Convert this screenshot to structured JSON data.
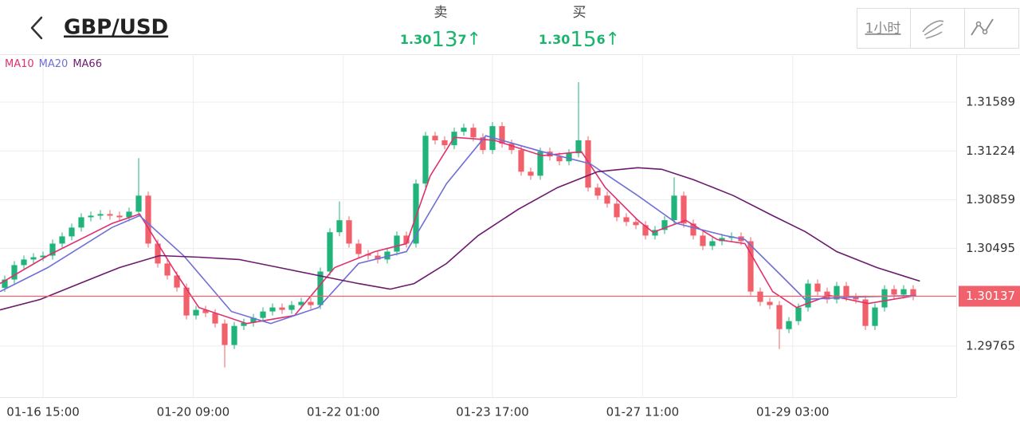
{
  "header": {
    "symbol": "GBP/USD",
    "sell": {
      "label": "卖",
      "price_parts": [
        "1.30",
        "13",
        "7"
      ],
      "arrow": "↑"
    },
    "buy": {
      "label": "买",
      "price_parts": [
        "1.30",
        "15",
        "6"
      ],
      "arrow": "↑"
    },
    "interval": "1小时"
  },
  "chart_data": {
    "type": "candlestick",
    "up_color": "#20b47a",
    "down_color": "#f0616b",
    "open": [
      1.302,
      1.30262,
      1.3037,
      1.30412,
      1.30429,
      1.30441,
      1.30531,
      1.30585,
      1.30651,
      1.30728,
      1.3074,
      1.30752,
      1.3074,
      1.30728,
      1.3077,
      1.3089,
      1.30531,
      1.30382,
      1.30292,
      1.30202,
      1.29993,
      1.30035,
      1.30011,
      1.29933,
      1.29772,
      1.29915,
      1.29939,
      1.29975,
      1.30023,
      1.30053,
      1.30035,
      1.30071,
      1.30095,
      1.30071,
      1.30322,
      1.30616,
      1.30706,
      1.30531,
      1.30453,
      1.30441,
      1.30412,
      1.30471,
      1.30591,
      1.30531,
      1.3098,
      1.31338,
      1.31304,
      1.31267,
      1.31368,
      1.31398,
      1.31326,
      1.31231,
      1.3141,
      1.31279,
      1.31231,
      1.31069,
      1.31039,
      1.31219,
      1.31183,
      1.31147,
      1.31207,
      1.31304,
      1.3095,
      1.3089,
      1.3083,
      1.30728,
      1.30693,
      1.30669,
      1.30591,
      1.30633,
      1.30706,
      1.3089,
      1.30681,
      1.30591,
      1.30513,
      1.30549,
      1.30573,
      1.30585,
      1.30549,
      1.30172,
      1.30095,
      1.30071,
      1.29891,
      1.29951,
      1.30053,
      1.30232,
      1.30172,
      1.30113,
      1.30214,
      1.3013,
      1.30113,
      1.29915,
      1.30053,
      1.3019,
      1.30149,
      1.3019
    ],
    "high": [
      1.30292,
      1.304,
      1.30442,
      1.30459,
      1.30471,
      1.30561,
      1.30615,
      1.30681,
      1.30758,
      1.3077,
      1.30782,
      1.30782,
      1.3077,
      1.308,
      1.31171,
      1.3092,
      1.30561,
      1.30412,
      1.30322,
      1.30232,
      1.30065,
      1.30065,
      1.30041,
      1.29963,
      1.29945,
      1.29969,
      1.30005,
      1.30053,
      1.30083,
      1.30083,
      1.30101,
      1.30125,
      1.30125,
      1.30352,
      1.30646,
      1.30846,
      1.30736,
      1.30561,
      1.30483,
      1.30471,
      1.30501,
      1.30621,
      1.30621,
      1.3101,
      1.31368,
      1.31368,
      1.31334,
      1.31398,
      1.31428,
      1.31428,
      1.31356,
      1.3144,
      1.3144,
      1.31309,
      1.31261,
      1.31099,
      1.31249,
      1.31249,
      1.31213,
      1.31237,
      1.31739,
      1.31334,
      1.3098,
      1.3092,
      1.3086,
      1.30758,
      1.30723,
      1.30699,
      1.30663,
      1.30736,
      1.31027,
      1.3092,
      1.30711,
      1.30621,
      1.30579,
      1.30603,
      1.30615,
      1.30615,
      1.30579,
      1.30202,
      1.30125,
      1.30101,
      1.29981,
      1.30083,
      1.30262,
      1.30262,
      1.30202,
      1.30244,
      1.30244,
      1.3016,
      1.30143,
      1.30083,
      1.3022,
      1.3022,
      1.3022,
      1.3022
    ],
    "low": [
      1.3017,
      1.30232,
      1.3034,
      1.30382,
      1.30399,
      1.30411,
      1.30501,
      1.30555,
      1.30621,
      1.30698,
      1.3071,
      1.3071,
      1.30698,
      1.30698,
      1.3074,
      1.30501,
      1.30352,
      1.30262,
      1.30172,
      1.29963,
      1.29963,
      1.29981,
      1.29903,
      1.29604,
      1.29742,
      1.29885,
      1.29909,
      1.29945,
      1.29993,
      1.30005,
      1.30005,
      1.30041,
      1.30041,
      1.30041,
      1.30292,
      1.30586,
      1.30501,
      1.30423,
      1.30411,
      1.30382,
      1.30382,
      1.30441,
      1.30501,
      1.30501,
      1.3095,
      1.31274,
      1.31237,
      1.31237,
      1.31338,
      1.31296,
      1.31201,
      1.31201,
      1.31249,
      1.31201,
      1.31039,
      1.31009,
      1.31009,
      1.31153,
      1.31117,
      1.31117,
      1.31177,
      1.3092,
      1.3086,
      1.308,
      1.30698,
      1.30663,
      1.30639,
      1.30561,
      1.30561,
      1.30603,
      1.30676,
      1.30651,
      1.30561,
      1.30483,
      1.30483,
      1.30519,
      1.30543,
      1.30519,
      1.30142,
      1.30065,
      1.30041,
      1.29742,
      1.29861,
      1.29921,
      1.30023,
      1.30142,
      1.30083,
      1.30083,
      1.301,
      1.30083,
      1.29885,
      1.29885,
      1.30023,
      1.30119,
      1.30119,
      1.30107
    ],
    "close": [
      1.30262,
      1.3037,
      1.30412,
      1.30429,
      1.30441,
      1.30531,
      1.30585,
      1.30651,
      1.30728,
      1.3074,
      1.30752,
      1.3074,
      1.30728,
      1.3077,
      1.3089,
      1.30531,
      1.30382,
      1.30292,
      1.30202,
      1.29993,
      1.30035,
      1.30011,
      1.29933,
      1.29772,
      1.29915,
      1.29939,
      1.29975,
      1.30023,
      1.30053,
      1.30035,
      1.30071,
      1.30095,
      1.30071,
      1.30322,
      1.30616,
      1.30706,
      1.30531,
      1.30453,
      1.30441,
      1.30412,
      1.30471,
      1.30591,
      1.30531,
      1.3098,
      1.31338,
      1.31304,
      1.31267,
      1.31368,
      1.31398,
      1.31326,
      1.31231,
      1.3141,
      1.31279,
      1.31231,
      1.31069,
      1.31039,
      1.31219,
      1.31183,
      1.31147,
      1.31207,
      1.31304,
      1.3095,
      1.3089,
      1.3083,
      1.30728,
      1.30693,
      1.30669,
      1.30591,
      1.30633,
      1.30706,
      1.3089,
      1.30681,
      1.30591,
      1.30513,
      1.30549,
      1.30573,
      1.30585,
      1.30549,
      1.30172,
      1.30095,
      1.30071,
      1.29891,
      1.29951,
      1.30053,
      1.30232,
      1.30172,
      1.30113,
      1.30214,
      1.3013,
      1.30113,
      1.29915,
      1.30053,
      1.3019,
      1.30149,
      1.3019,
      1.30137
    ],
    "series": [
      {
        "name": "MA10",
        "color": "#e0306e",
        "x": [
          -0.5,
          4.5,
          11.2,
          14.1,
          17.8,
          20.3,
          25.3,
          30.3,
          34.5,
          38.7,
          42,
          44.5,
          47,
          51.2,
          56.2,
          60.3,
          62.8,
          66.2,
          67.8,
          71.2,
          74.5,
          77.4,
          80.3,
          82.8,
          86.2,
          90.3,
          95.3
        ],
        "values": [
          1.30232,
          1.30441,
          1.30681,
          1.30752,
          1.30322,
          1.30053,
          1.29933,
          1.29993,
          1.30352,
          1.30471,
          1.30531,
          1.31039,
          1.31326,
          1.31304,
          1.31189,
          1.31219,
          1.3095,
          1.30706,
          1.30616,
          1.30706,
          1.30561,
          1.30531,
          1.30172,
          1.30053,
          1.30143,
          1.30083,
          1.30143
        ]
      },
      {
        "name": "MA20",
        "color": "#6f6fd6",
        "x": [
          -0.5,
          4.5,
          11.2,
          14.1,
          18.7,
          23.7,
          27.8,
          32.8,
          37,
          42,
          46.2,
          50.3,
          56.2,
          61.2,
          66.2,
          70.3,
          75.3,
          77.4,
          81.2,
          83.7,
          88.7,
          95.3
        ],
        "values": [
          1.30172,
          1.30352,
          1.30651,
          1.3074,
          1.30441,
          1.30023,
          1.29933,
          1.30053,
          1.30382,
          1.30471,
          1.3098,
          1.31338,
          1.31219,
          1.31129,
          1.3089,
          1.30681,
          1.30591,
          1.30561,
          1.30292,
          1.30113,
          1.30131,
          1.30143
        ]
      },
      {
        "name": "MA66",
        "color": "#6b1a6e",
        "x": [
          -0.5,
          3.7,
          7.8,
          12,
          16.2,
          20.3,
          24.5,
          28.7,
          32.8,
          37,
          40.3,
          42.8,
          46.2,
          49.5,
          53.7,
          57.8,
          62,
          66.2,
          68.7,
          72,
          76.2,
          80.3,
          83.7,
          87,
          91.2,
          95.7
        ],
        "values": [
          1.30035,
          1.30113,
          1.30232,
          1.30352,
          1.30441,
          1.30429,
          1.30412,
          1.30352,
          1.30292,
          1.30232,
          1.3019,
          1.30232,
          1.30382,
          1.30591,
          1.30788,
          1.3095,
          1.31069,
          1.31099,
          1.31087,
          1.3101,
          1.3089,
          1.3074,
          1.30621,
          1.30471,
          1.30352,
          1.3025
        ]
      }
    ],
    "ylim": [
      1.29382,
      1.31948
    ],
    "yticks": [
      1.29765,
      1.30495,
      1.30859,
      1.31224,
      1.31589
    ],
    "xlim": [
      -0.5,
      99.5
    ],
    "xticks": [
      {
        "value": 4,
        "label": "01-16 15:00"
      },
      {
        "value": 19.7,
        "label": "01-20 09:00"
      },
      {
        "value": 35.4,
        "label": "01-22 01:00"
      },
      {
        "value": 51,
        "label": "01-23 17:00"
      },
      {
        "value": 66.7,
        "label": "01-27 11:00"
      },
      {
        "value": 82.4,
        "label": "01-29 03:00"
      }
    ],
    "grid": true,
    "price_line": 1.30137,
    "price_line_color": "#f0616b"
  }
}
